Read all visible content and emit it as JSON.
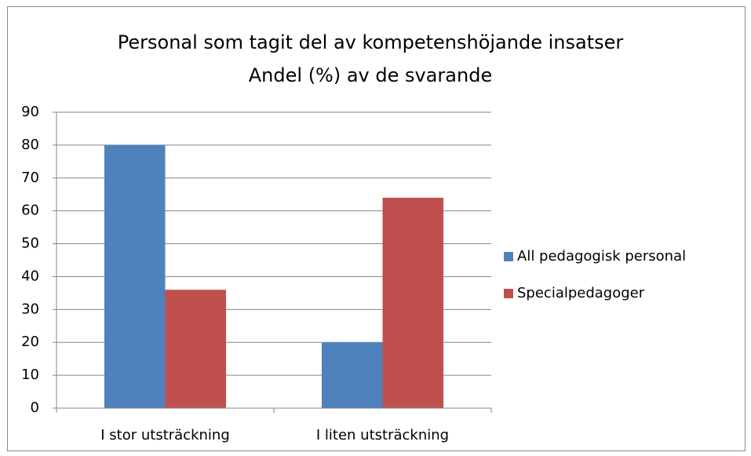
{
  "chart_data": {
    "type": "bar",
    "title": [
      "Personal som tagit del av kompetenshöjande insatser",
      "Andel (%) av de svarande"
    ],
    "categories": [
      "I stor utsträckning",
      "I liten utsträckning"
    ],
    "series": [
      {
        "name": "All pedagogisk personal",
        "color": "#4f81bd",
        "values": [
          80,
          20
        ]
      },
      {
        "name": "Specialpedagoger",
        "color": "#c0504d",
        "values": [
          36,
          64
        ]
      }
    ],
    "ylim": [
      0,
      90
    ],
    "yticks": [
      0,
      10,
      20,
      30,
      40,
      50,
      60,
      70,
      80,
      90
    ],
    "grid": true,
    "legend": "right"
  }
}
